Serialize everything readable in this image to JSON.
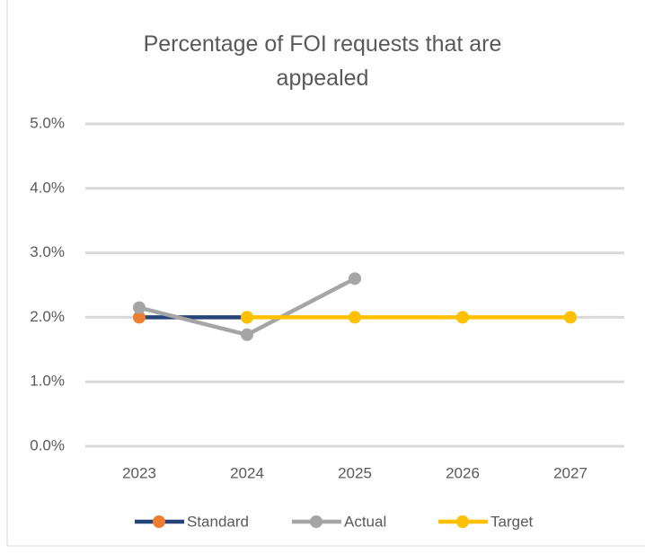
{
  "chart_data": {
    "type": "line",
    "title": "Percentage of FOI requests that are appealed",
    "categories": [
      "2023",
      "2024",
      "2025",
      "2026",
      "2027"
    ],
    "series": [
      {
        "name": "Standard",
        "color": "#264478",
        "marker_color": "#ED7D31",
        "values": [
          2.0,
          2.0,
          null,
          null,
          null
        ]
      },
      {
        "name": "Actual",
        "color": "#A5A5A5",
        "marker_color": "#A5A5A5",
        "values": [
          2.15,
          1.73,
          2.6,
          null,
          null
        ]
      },
      {
        "name": "Target",
        "color": "#FFC000",
        "marker_color": "#FFC000",
        "values": [
          null,
          2.0,
          2.0,
          2.0,
          2.0
        ]
      }
    ],
    "ylim": [
      0,
      5
    ],
    "yticks": [
      {
        "value": 0,
        "label": "0.0%"
      },
      {
        "value": 1,
        "label": "1.0%"
      },
      {
        "value": 2,
        "label": "2.0%"
      },
      {
        "value": 3,
        "label": "3.0%"
      },
      {
        "value": 4,
        "label": "4.0%"
      },
      {
        "value": 5,
        "label": "5.0%"
      }
    ],
    "grid": true,
    "legend": "bottom"
  }
}
